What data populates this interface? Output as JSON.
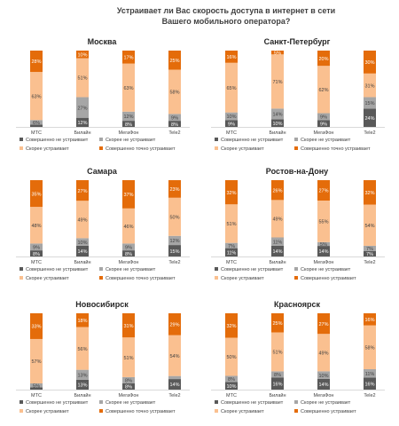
{
  "title": "Устраивает ли Вас скорость  доступа в интернет в сети Вашего мобильного оператора?",
  "colors": {
    "not_at_all": "#595959",
    "rather_not": "#a6a6a6",
    "rather_yes": "#fac090",
    "fully_yes": "#e46c0a",
    "baseline": "#d9d9d9"
  },
  "legend": [
    "Совершенно не устраивает",
    "Скорее не устраивает",
    "Скорее устраивает",
    "Совершенно точно устраивает"
  ],
  "legend_alt4": "Совершенно устраивает",
  "chart_data": [
    {
      "type": "bar",
      "stacked": true,
      "title": "Москва",
      "categories": [
        "МТС",
        "Билайн",
        "МегаФон",
        "Tele2"
      ],
      "series": [
        {
          "name": "Совершенно не устраивает",
          "values": [
            3,
            12,
            8,
            8
          ]
        },
        {
          "name": "Скорее не устраивает",
          "values": [
            6,
            27,
            12,
            9
          ]
        },
        {
          "name": "Скорее устраивает",
          "values": [
            63,
            51,
            63,
            58
          ]
        },
        {
          "name": "Совершенно точно устраивает",
          "values": [
            28,
            10,
            17,
            25
          ]
        }
      ],
      "data_labels": [
        [
          "",
          "6%",
          "63%",
          "28%"
        ],
        [
          "12%",
          "27%",
          "51%",
          "10%"
        ],
        [
          "8%",
          "12%",
          "63%",
          "17%"
        ],
        [
          "8%",
          "9%",
          "58%",
          "25%"
        ]
      ],
      "legend_placement": "bottom",
      "ylim": [
        0,
        100
      ]
    },
    {
      "type": "bar",
      "stacked": true,
      "title": "Санкт-Петербург",
      "categories": [
        "МТС",
        "Билайн",
        "МегаФон",
        "Tele2"
      ],
      "series": [
        {
          "name": "Совершенно не устраивает",
          "values": [
            9,
            10,
            9,
            24
          ]
        },
        {
          "name": "Скорее не устраивает",
          "values": [
            10,
            14,
            9,
            15
          ]
        },
        {
          "name": "Скорее устраивает",
          "values": [
            65,
            71,
            62,
            31
          ]
        },
        {
          "name": "Совершенно точно устраивает",
          "values": [
            16,
            5,
            20,
            30
          ]
        }
      ],
      "data_labels": [
        [
          "9%",
          "10%",
          "65%",
          "16%"
        ],
        [
          "10%",
          "14%",
          "71%",
          "5%"
        ],
        [
          "9%",
          "9%",
          "62%",
          "20%"
        ],
        [
          "24%",
          "15%",
          "31%",
          "30%"
        ]
      ],
      "legend_placement": "bottom",
      "ylim": [
        0,
        100
      ]
    },
    {
      "type": "bar",
      "stacked": true,
      "title": "Самара",
      "categories": [
        "МТС",
        "Билайн",
        "МегаФон",
        "Tele2"
      ],
      "series": [
        {
          "name": "Совершенно не устраивает",
          "values": [
            8,
            14,
            8,
            15
          ]
        },
        {
          "name": "Скорее не устраивает",
          "values": [
            9,
            10,
            9,
            12
          ]
        },
        {
          "name": "Скорее устраивает",
          "values": [
            48,
            49,
            46,
            50
          ]
        },
        {
          "name": "Совершенно точно устраивает",
          "values": [
            35,
            27,
            37,
            23
          ]
        }
      ],
      "data_labels": [
        [
          "8%",
          "9%",
          "48%",
          "35%"
        ],
        [
          "14%",
          "10%",
          "49%",
          "27%"
        ],
        [
          "8%",
          "9%",
          "46%",
          "37%"
        ],
        [
          "15%",
          "12%",
          "50%",
          "23%"
        ]
      ],
      "legend_placement": "bottom",
      "ylim": [
        0,
        100
      ]
    },
    {
      "type": "bar",
      "stacked": true,
      "title": "Ростов-на-Дону",
      "categories": [
        "МТС",
        "Билайн",
        "МегаФон",
        "Tele2"
      ],
      "series": [
        {
          "name": "Совершенно не устраивает",
          "values": [
            11,
            14,
            14,
            7
          ]
        },
        {
          "name": "Скорее не устраивает",
          "values": [
            7,
            11,
            5,
            7
          ]
        },
        {
          "name": "Скорее устраивает",
          "values": [
            51,
            49,
            55,
            54
          ]
        },
        {
          "name": "Совершенно устраивает",
          "values": [
            32,
            26,
            27,
            32
          ]
        }
      ],
      "data_labels": [
        [
          "11%",
          "7%",
          "51%",
          "32%"
        ],
        [
          "14%",
          "11%",
          "49%",
          "26%"
        ],
        [
          "14%",
          "5%",
          "55%",
          "27%"
        ],
        [
          "7%",
          "7%",
          "54%",
          "32%"
        ]
      ],
      "legend_placement": "bottom",
      "ylim": [
        0,
        100
      ]
    },
    {
      "type": "bar",
      "stacked": true,
      "title": "Новосибирск",
      "categories": [
        "МТС",
        "Билайн",
        "МегаФон",
        "Tele2"
      ],
      "series": [
        {
          "name": "Совершенно не устраивает",
          "values": [
            3,
            13,
            8,
            14
          ]
        },
        {
          "name": "Скорее не устраивает",
          "values": [
            5,
            13,
            8,
            4
          ]
        },
        {
          "name": "Скорее устраивает",
          "values": [
            57,
            56,
            51,
            54
          ]
        },
        {
          "name": "Совершенно точно устраивает",
          "values": [
            33,
            18,
            31,
            29
          ]
        }
      ],
      "data_labels": [
        [
          "",
          "5%",
          "57%",
          "33%"
        ],
        [
          "13%",
          "13%",
          "56%",
          "18%"
        ],
        [
          "8%",
          "8%",
          "51%",
          "31%"
        ],
        [
          "14%",
          "",
          "54%",
          "29%"
        ]
      ],
      "legend_placement": "bottom",
      "ylim": [
        0,
        100
      ]
    },
    {
      "type": "bar",
      "stacked": true,
      "title": "Красноярск",
      "categories": [
        "МТС",
        "Билайн",
        "МегаФон",
        "Tele2"
      ],
      "series": [
        {
          "name": "Совершенно не устраивает",
          "values": [
            10,
            16,
            14,
            16
          ]
        },
        {
          "name": "Скорее не устраивает",
          "values": [
            8,
            8,
            10,
            11
          ]
        },
        {
          "name": "Скорее устраивает",
          "values": [
            50,
            51,
            49,
            58
          ]
        },
        {
          "name": "Совершенно устраивает",
          "values": [
            32,
            25,
            27,
            16
          ]
        }
      ],
      "data_labels": [
        [
          "10%",
          "8%",
          "50%",
          "32%"
        ],
        [
          "16%",
          "8%",
          "51%",
          "25%"
        ],
        [
          "14%",
          "10%",
          "49%",
          "27%"
        ],
        [
          "16%",
          "11%",
          "58%",
          "16%"
        ]
      ],
      "legend_placement": "bottom",
      "ylim": [
        0,
        100
      ]
    }
  ]
}
